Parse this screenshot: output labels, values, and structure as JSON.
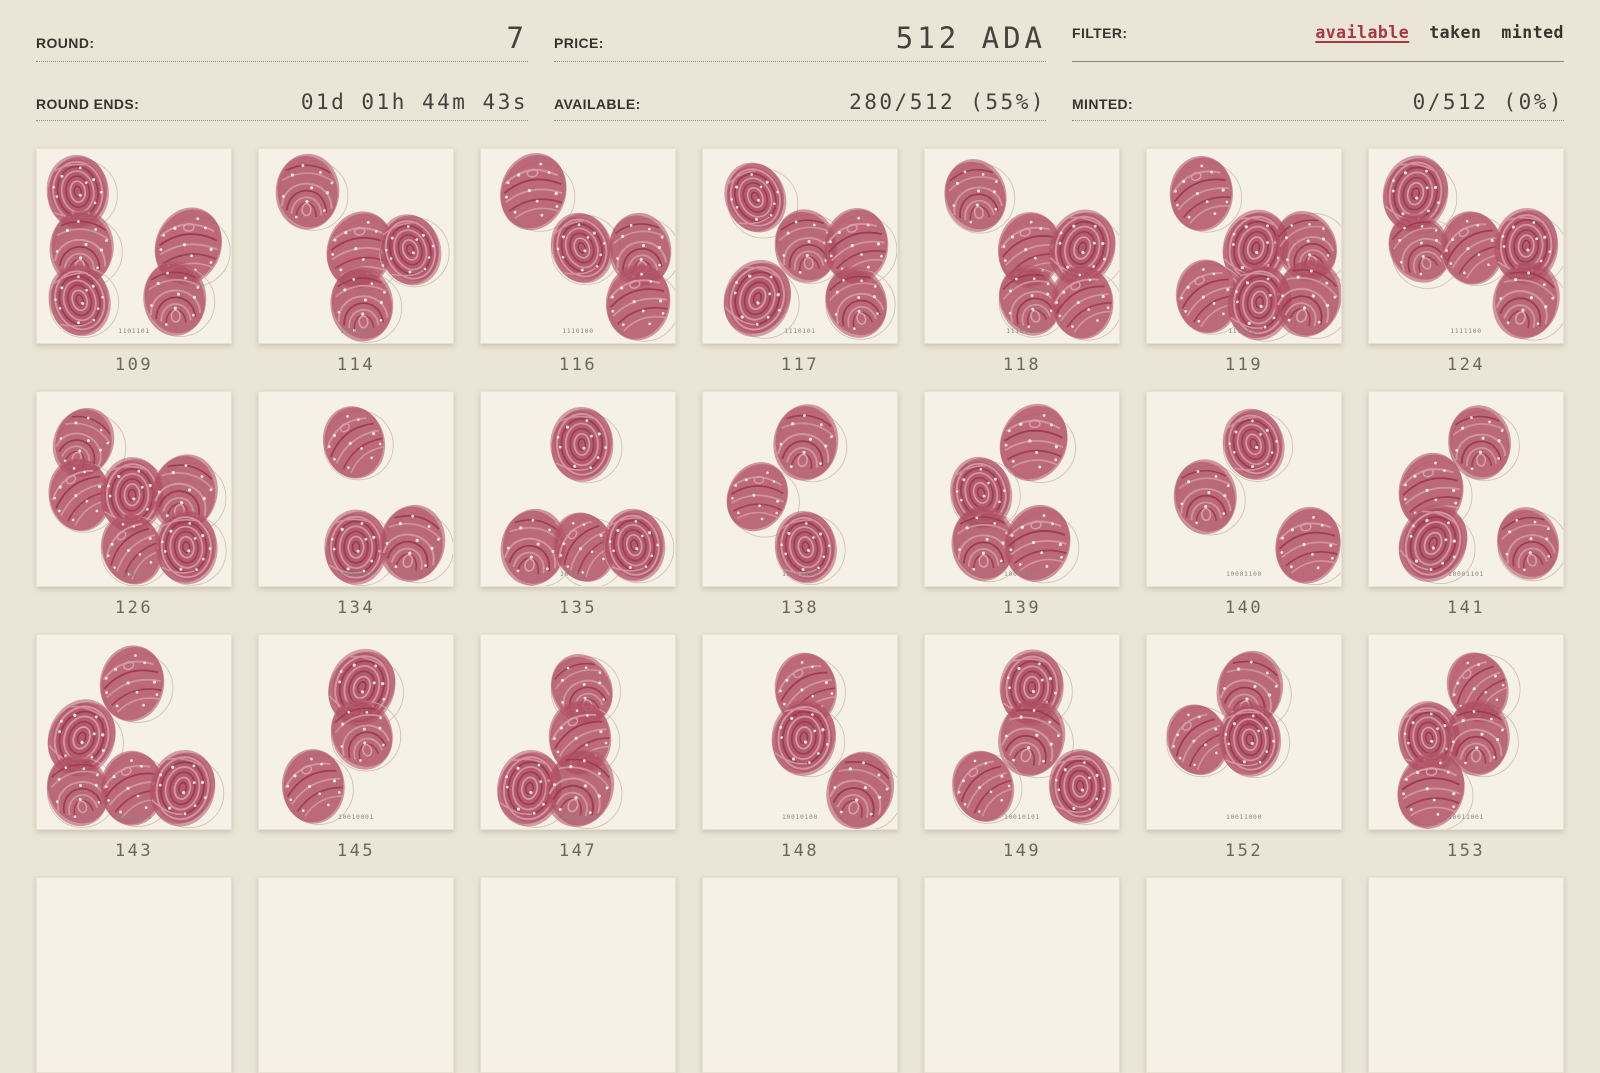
{
  "header": {
    "stats": [
      {
        "key": "round",
        "label": "ROUND:",
        "value": "7"
      },
      {
        "key": "price",
        "label": "PRICE:",
        "value": "512 ADA"
      },
      {
        "key": "filter",
        "label": "FILTER:"
      },
      {
        "key": "round_ends",
        "label": "ROUND ENDS:",
        "value": "01d 01h 44m 43s"
      },
      {
        "key": "available",
        "label": "AVAILABLE:",
        "value": "280/512 (55%)"
      },
      {
        "key": "minted",
        "label": "MINTED:",
        "value": "0/512 (0%)"
      }
    ],
    "filter_options": [
      {
        "label": "available",
        "active": true
      },
      {
        "label": "taken",
        "active": false
      },
      {
        "label": "minted",
        "active": false
      }
    ]
  },
  "colors": {
    "page_bg": "#ebe5d7",
    "card_bg": "#f6f1e6",
    "accent_filter_active": "#a73648",
    "fingerprint_rose": "#b5566b",
    "stamp_circle": "#c9b8a4"
  },
  "cards": [
    {
      "id": "109",
      "binary": "1101101",
      "prints": [
        [
          21,
          22
        ],
        [
          23,
          51
        ],
        [
          78,
          50
        ],
        [
          22,
          78
        ],
        [
          71,
          77
        ]
      ]
    },
    {
      "id": "114",
      "binary": "1110010",
      "prints": [
        [
          25,
          22
        ],
        [
          52,
          52
        ],
        [
          78,
          52
        ],
        [
          53,
          80
        ]
      ]
    },
    {
      "id": "116",
      "binary": "1110100",
      "prints": [
        [
          27,
          22
        ],
        [
          52,
          51
        ],
        [
          82,
          52
        ],
        [
          81,
          79
        ]
      ]
    },
    {
      "id": "117",
      "binary": "1110101",
      "prints": [
        [
          27,
          25
        ],
        [
          53,
          50
        ],
        [
          79,
          50
        ],
        [
          28,
          77
        ],
        [
          79,
          79
        ]
      ]
    },
    {
      "id": "118",
      "binary": "1110110",
      "prints": [
        [
          26,
          24
        ],
        [
          54,
          52
        ],
        [
          81,
          51
        ],
        [
          54,
          78
        ],
        [
          81,
          79
        ]
      ]
    },
    {
      "id": "119",
      "binary": "1110111",
      "prints": [
        [
          28,
          23
        ],
        [
          56,
          51
        ],
        [
          82,
          50
        ],
        [
          31,
          76
        ],
        [
          58,
          79
        ],
        [
          83,
          77
        ]
      ]
    },
    {
      "id": "124",
      "binary": "1111100",
      "prints": [
        [
          24,
          23
        ],
        [
          26,
          51
        ],
        [
          53,
          51
        ],
        [
          81,
          50
        ],
        [
          81,
          78
        ]
      ]
    },
    {
      "id": "126",
      "binary": "1111110",
      "prints": [
        [
          24,
          26
        ],
        [
          22,
          53
        ],
        [
          49,
          53
        ],
        [
          76,
          52
        ],
        [
          49,
          81
        ],
        [
          77,
          80
        ]
      ]
    },
    {
      "id": "134",
      "binary": "10000110",
      "prints": [
        [
          49,
          26
        ],
        [
          50,
          80
        ],
        [
          79,
          78
        ]
      ]
    },
    {
      "id": "135",
      "binary": "10000111",
      "prints": [
        [
          52,
          27
        ],
        [
          27,
          80
        ],
        [
          53,
          80
        ],
        [
          79,
          79
        ]
      ]
    },
    {
      "id": "138",
      "binary": "10001010",
      "prints": [
        [
          53,
          26
        ],
        [
          28,
          54
        ],
        [
          53,
          80
        ]
      ]
    },
    {
      "id": "139",
      "binary": "10001011",
      "prints": [
        [
          56,
          26
        ],
        [
          29,
          52
        ],
        [
          30,
          78
        ],
        [
          58,
          78
        ]
      ]
    },
    {
      "id": "140",
      "binary": "10001100",
      "prints": [
        [
          55,
          27
        ],
        [
          30,
          54
        ],
        [
          83,
          79
        ]
      ]
    },
    {
      "id": "141",
      "binary": "10001101",
      "prints": [
        [
          57,
          26
        ],
        [
          32,
          51
        ],
        [
          33,
          78
        ],
        [
          82,
          78
        ]
      ]
    },
    {
      "id": "143",
      "binary": "10001111",
      "prints": [
        [
          49,
          25
        ],
        [
          23,
          53
        ],
        [
          21,
          80
        ],
        [
          49,
          79
        ],
        [
          75,
          79
        ]
      ]
    },
    {
      "id": "145",
      "binary": "10010001",
      "prints": [
        [
          53,
          27
        ],
        [
          53,
          51
        ],
        [
          28,
          78
        ]
      ]
    },
    {
      "id": "147",
      "binary": "10010011",
      "prints": [
        [
          52,
          28
        ],
        [
          51,
          53
        ],
        [
          25,
          79
        ],
        [
          51,
          79
        ]
      ]
    },
    {
      "id": "148",
      "binary": "10010100",
      "prints": [
        [
          53,
          28
        ],
        [
          52,
          53
        ],
        [
          81,
          80
        ]
      ]
    },
    {
      "id": "149",
      "binary": "10010101",
      "prints": [
        [
          55,
          27
        ],
        [
          55,
          53
        ],
        [
          30,
          78
        ],
        [
          80,
          78
        ]
      ]
    },
    {
      "id": "152",
      "binary": "10011000",
      "prints": [
        [
          53,
          28
        ],
        [
          26,
          54
        ],
        [
          53,
          54
        ]
      ]
    },
    {
      "id": "153",
      "binary": "10011001",
      "prints": [
        [
          56,
          27
        ],
        [
          31,
          53
        ],
        [
          56,
          53
        ],
        [
          32,
          80
        ]
      ]
    }
  ],
  "next_row_placeholder_count": 7
}
